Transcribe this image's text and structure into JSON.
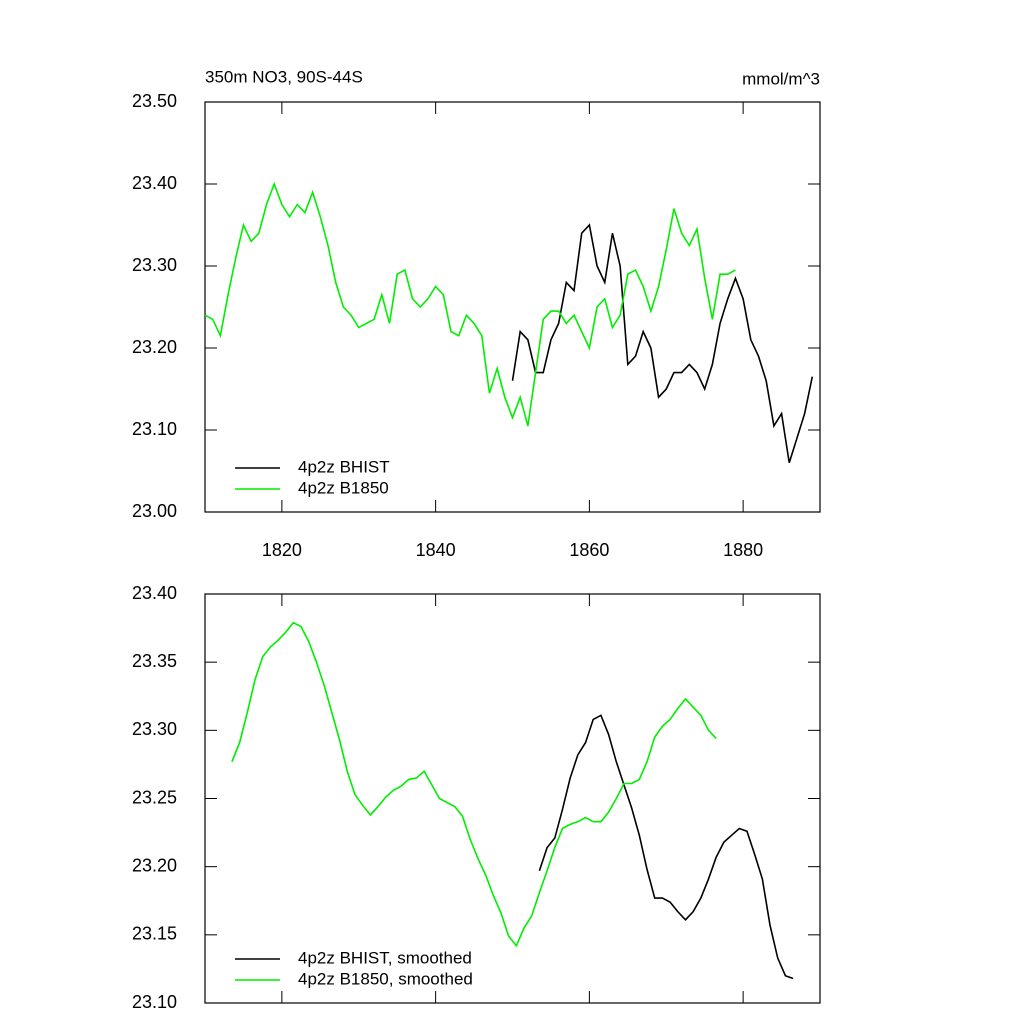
{
  "chart_data": [
    {
      "type": "line",
      "title": "350m NO3, 90S-44S",
      "units": "mmol/m^3",
      "xlim": [
        1810,
        1890
      ],
      "xticks": [
        1820,
        1840,
        1860,
        1880
      ],
      "xticklabels": true,
      "ylim": [
        23.0,
        23.5
      ],
      "yticks": [
        {
          "value": 23.0,
          "label": "23.00"
        },
        {
          "value": 23.1,
          "label": "23.10"
        },
        {
          "value": 23.2,
          "label": "23.20"
        },
        {
          "value": 23.3,
          "label": "23.30"
        },
        {
          "value": 23.4,
          "label": "23.40"
        },
        {
          "value": 23.5,
          "label": "23.50"
        }
      ],
      "legend": "lower-left",
      "series": [
        {
          "name": "4p2z BHIST",
          "color": "#000000",
          "x": [
            1850,
            1851,
            1852,
            1853,
            1854,
            1855,
            1856,
            1857,
            1858,
            1859,
            1860,
            1861,
            1862,
            1863,
            1864,
            1865,
            1866,
            1867,
            1868,
            1869,
            1870,
            1871,
            1872,
            1873,
            1874,
            1875,
            1876,
            1877,
            1878,
            1879,
            1880,
            1881,
            1882,
            1883,
            1884,
            1885,
            1886,
            1887,
            1888,
            1889
          ],
          "values": [
            23.16,
            23.22,
            23.21,
            23.17,
            23.17,
            23.21,
            23.23,
            23.28,
            23.27,
            23.34,
            23.35,
            23.3,
            23.28,
            23.34,
            23.3,
            23.18,
            23.19,
            23.22,
            23.2,
            23.14,
            23.15,
            23.17,
            23.17,
            23.18,
            23.17,
            23.15,
            23.18,
            23.23,
            23.26,
            23.285,
            23.26,
            23.21,
            23.19,
            23.16,
            23.105,
            23.12,
            23.06,
            23.09,
            23.12,
            23.165
          ]
        },
        {
          "name": "4p2z B1850",
          "color": "#00ee00",
          "x": [
            1810,
            1811,
            1812,
            1813,
            1814,
            1815,
            1816,
            1817,
            1818,
            1819,
            1820,
            1821,
            1822,
            1823,
            1824,
            1825,
            1826,
            1827,
            1828,
            1829,
            1830,
            1831,
            1832,
            1833,
            1834,
            1835,
            1836,
            1837,
            1838,
            1839,
            1840,
            1841,
            1842,
            1843,
            1844,
            1845,
            1846,
            1847,
            1848,
            1849,
            1850,
            1851,
            1852,
            1853,
            1854,
            1855,
            1856,
            1857,
            1858,
            1859,
            1860,
            1861,
            1862,
            1863,
            1864,
            1865,
            1866,
            1867,
            1868,
            1869,
            1870,
            1871,
            1872,
            1873,
            1874,
            1875,
            1876,
            1877,
            1878,
            1879
          ],
          "values": [
            23.24,
            23.235,
            23.215,
            23.265,
            23.31,
            23.35,
            23.33,
            23.34,
            23.375,
            23.4,
            23.375,
            23.36,
            23.375,
            23.365,
            23.39,
            23.36,
            23.325,
            23.28,
            23.25,
            23.24,
            23.225,
            23.23,
            23.235,
            23.265,
            23.23,
            23.29,
            23.295,
            23.26,
            23.25,
            23.26,
            23.275,
            23.265,
            23.22,
            23.215,
            23.24,
            23.23,
            23.215,
            23.145,
            23.175,
            23.14,
            23.115,
            23.14,
            23.105,
            23.17,
            23.235,
            23.245,
            23.245,
            23.23,
            23.24,
            23.22,
            23.2,
            23.25,
            23.26,
            23.225,
            23.24,
            23.29,
            23.295,
            23.275,
            23.245,
            23.275,
            23.32,
            23.37,
            23.34,
            23.325,
            23.345,
            23.285,
            23.235,
            23.29,
            23.29,
            23.295
          ]
        }
      ]
    },
    {
      "type": "line",
      "xlim": [
        1810,
        1890
      ],
      "xticks": [
        1820,
        1840,
        1860,
        1880
      ],
      "xticklabels": false,
      "ylim": [
        23.1,
        23.4
      ],
      "yticks": [
        {
          "value": 23.1,
          "label": "23.10"
        },
        23.15,
        {
          "value": 23.2,
          "label": "23.20"
        },
        23.25,
        {
          "value": 23.3,
          "label": "23.30"
        },
        23.35,
        {
          "value": 23.4,
          "label": "23.40"
        }
      ],
      "legend": "lower-left",
      "series": [
        {
          "name": "4p2z BHIST, smoothed",
          "color": "#000000",
          "x": [
            1853.5,
            1854.5,
            1855.5,
            1856.5,
            1857.5,
            1858.5,
            1859.5,
            1860.5,
            1861.5,
            1862.5,
            1863.5,
            1864.5,
            1865.5,
            1866.5,
            1867.5,
            1868.5,
            1869.5,
            1870.5,
            1871.5,
            1872.5,
            1873.5,
            1874.5,
            1875.5,
            1876.5,
            1877.5,
            1878.5,
            1879.5,
            1880.5,
            1881.5,
            1882.5,
            1883.5,
            1884.5,
            1885.5,
            1886.5
          ],
          "values": [
            23.197,
            23.214,
            23.221,
            23.242,
            23.265,
            23.282,
            23.291,
            23.308,
            23.311,
            23.297,
            23.277,
            23.26,
            23.243,
            23.223,
            23.198,
            23.177,
            23.177,
            23.174,
            23.167,
            23.161,
            23.167,
            23.177,
            23.191,
            23.207,
            23.218,
            23.223,
            23.228,
            23.226,
            23.209,
            23.191,
            23.157,
            23.133,
            23.12,
            23.118
          ]
        },
        {
          "name": "4p2z B1850, smoothed",
          "color": "#00ee00",
          "x": [
            1813.5,
            1814.5,
            1815.5,
            1816.5,
            1817.5,
            1818.5,
            1819.5,
            1820.5,
            1821.5,
            1822.5,
            1823.5,
            1824.5,
            1825.5,
            1826.5,
            1827.5,
            1828.5,
            1829.5,
            1830.5,
            1831.5,
            1832.5,
            1833.5,
            1834.5,
            1835.5,
            1836.5,
            1837.5,
            1838.5,
            1839.5,
            1840.5,
            1841.5,
            1842.5,
            1843.5,
            1844.5,
            1845.5,
            1846.5,
            1847.5,
            1848.5,
            1849.5,
            1850.5,
            1851.5,
            1852.5,
            1853.5,
            1854.5,
            1855.5,
            1856.5,
            1857.5,
            1858.5,
            1859.5,
            1860.5,
            1861.5,
            1862.5,
            1863.5,
            1864.5,
            1865.5,
            1866.5,
            1867.5,
            1868.5,
            1869.5,
            1870.5,
            1871.5,
            1872.5,
            1873.5,
            1874.5,
            1875.5,
            1876.5
          ],
          "values": [
            23.277,
            23.291,
            23.313,
            23.337,
            23.354,
            23.361,
            23.366,
            23.372,
            23.379,
            23.376,
            23.365,
            23.35,
            23.333,
            23.313,
            23.293,
            23.27,
            23.253,
            23.245,
            23.238,
            23.244,
            23.251,
            23.256,
            23.259,
            23.264,
            23.265,
            23.27,
            23.26,
            23.25,
            23.247,
            23.244,
            23.237,
            23.22,
            23.206,
            23.194,
            23.179,
            23.166,
            23.149,
            23.142,
            23.155,
            23.164,
            23.181,
            23.197,
            23.214,
            23.228,
            23.231,
            23.233,
            23.236,
            23.233,
            23.233,
            23.24,
            23.25,
            23.261,
            23.261,
            23.264,
            23.277,
            23.295,
            23.303,
            23.308,
            23.316,
            23.323,
            23.317,
            23.311,
            23.3,
            23.294
          ]
        }
      ]
    }
  ]
}
